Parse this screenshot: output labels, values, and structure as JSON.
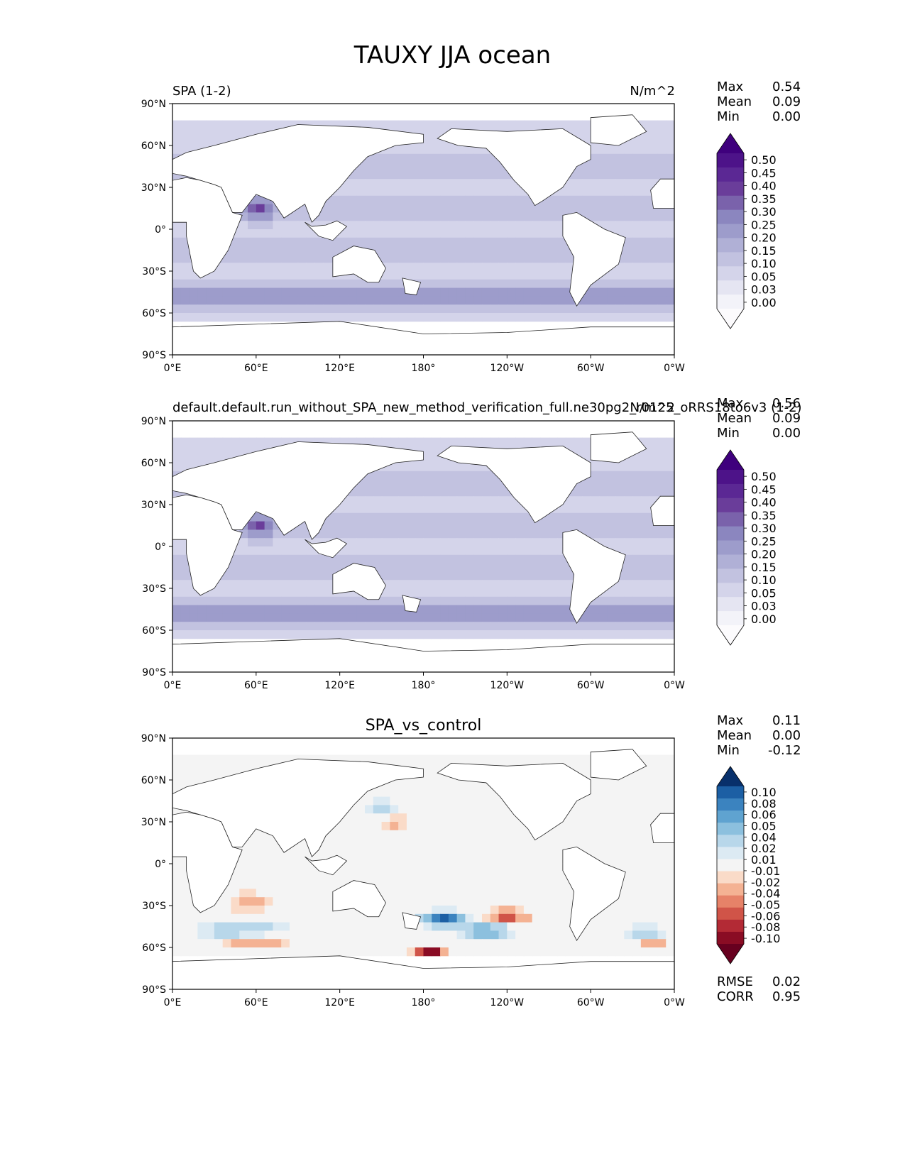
{
  "figure": {
    "title": "TAUXY JJA ocean"
  },
  "panels": [
    {
      "left_title": "SPA (1-2)",
      "center_title": "",
      "units": "N/m^2",
      "stats": [
        {
          "label": "Max",
          "value": "0.54"
        },
        {
          "label": "Mean",
          "value": "0.09"
        },
        {
          "label": "Min",
          "value": "0.00"
        }
      ],
      "colorbar": {
        "labels": [
          "0.50",
          "0.45",
          "0.40",
          "0.35",
          "0.30",
          "0.25",
          "0.20",
          "0.15",
          "0.10",
          "0.05",
          "0.03",
          "0.00"
        ],
        "colors": [
          "#3f007d",
          "#4d1389",
          "#5b2894",
          "#6a3d9a",
          "#7a62ab",
          "#8b86bf",
          "#9d9ccb",
          "#b0b0d6",
          "#c2c2e0",
          "#d4d4ea",
          "#e5e5f2",
          "#f3f3f9",
          "#fcfbfd"
        ]
      },
      "field": "magnitude"
    },
    {
      "left_title": "default.default.run_without_SPA_new_method_verification_full.ne30pg2_r0125_oRRS18to6v3 (1-2)",
      "center_title": "",
      "units": "N/m^2",
      "stats": [
        {
          "label": "Max",
          "value": "0.56"
        },
        {
          "label": "Mean",
          "value": "0.09"
        },
        {
          "label": "Min",
          "value": "0.00"
        }
      ],
      "colorbar": {
        "labels": [
          "0.50",
          "0.45",
          "0.40",
          "0.35",
          "0.30",
          "0.25",
          "0.20",
          "0.15",
          "0.10",
          "0.05",
          "0.03",
          "0.00"
        ],
        "colors": [
          "#3f007d",
          "#4d1389",
          "#5b2894",
          "#6a3d9a",
          "#7a62ab",
          "#8b86bf",
          "#9d9ccb",
          "#b0b0d6",
          "#c2c2e0",
          "#d4d4ea",
          "#e5e5f2",
          "#f3f3f9",
          "#fcfbfd"
        ]
      },
      "field": "magnitude"
    },
    {
      "left_title": "",
      "center_title": "SPA_vs_control",
      "units": "",
      "stats": [
        {
          "label": "Max",
          "value": "0.11"
        },
        {
          "label": "Mean",
          "value": "0.00"
        },
        {
          "label": "Min",
          "value": "-0.12"
        }
      ],
      "extra_stats": [
        {
          "label": "RMSE",
          "value": "0.02"
        },
        {
          "label": "CORR",
          "value": "0.95"
        }
      ],
      "colorbar": {
        "labels": [
          "0.10",
          "0.08",
          "0.06",
          "0.05",
          "0.04",
          "0.02",
          "0.01",
          "-0.01",
          "-0.02",
          "-0.04",
          "-0.05",
          "-0.06",
          "-0.08",
          "-0.10"
        ],
        "colors": [
          "#08306b",
          "#1c5fa4",
          "#3b83bf",
          "#5fa3d0",
          "#8cc0de",
          "#b8d7ea",
          "#dceaf3",
          "#f4f4f4",
          "#fadbc8",
          "#f4b293",
          "#e68268",
          "#d05448",
          "#b32a35",
          "#8a0c24",
          "#67001f"
        ]
      },
      "field": "difference"
    }
  ],
  "axes": {
    "lat_ticks": [
      "90°N",
      "60°N",
      "30°N",
      "0°",
      "30°S",
      "60°S",
      "90°S"
    ],
    "lon_ticks": [
      "0°E",
      "60°E",
      "120°E",
      "180°",
      "120°W",
      "60°W",
      "0°W"
    ]
  }
}
